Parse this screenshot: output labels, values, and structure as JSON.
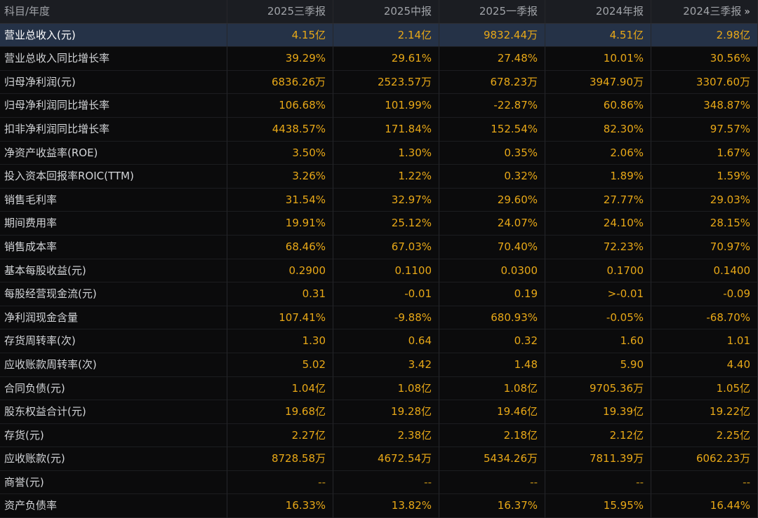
{
  "header": {
    "label": "科目/年度",
    "columns": [
      "2025三季报",
      "2025中报",
      "2025一季报",
      "2024年报",
      "2024三季报"
    ],
    "more_icon": "double-chevron-right-icon",
    "more_glyph": "»"
  },
  "rows": [
    {
      "label": "营业总收入(元)",
      "values": [
        "4.15亿",
        "2.14亿",
        "9832.44万",
        "4.51亿",
        "2.98亿"
      ]
    },
    {
      "label": "营业总收入同比增长率",
      "values": [
        "39.29%",
        "29.61%",
        "27.48%",
        "10.01%",
        "30.56%"
      ]
    },
    {
      "label": "归母净利润(元)",
      "values": [
        "6836.26万",
        "2523.57万",
        "678.23万",
        "3947.90万",
        "3307.60万"
      ]
    },
    {
      "label": "归母净利润同比增长率",
      "values": [
        "106.68%",
        "101.99%",
        "-22.87%",
        "60.86%",
        "348.87%"
      ]
    },
    {
      "label": "扣非净利润同比增长率",
      "values": [
        "4438.57%",
        "171.84%",
        "152.54%",
        "82.30%",
        "97.57%"
      ]
    },
    {
      "label": "净资产收益率(ROE)",
      "values": [
        "3.50%",
        "1.30%",
        "0.35%",
        "2.06%",
        "1.67%"
      ]
    },
    {
      "label": "投入资本回报率ROIC(TTM)",
      "values": [
        "3.26%",
        "1.22%",
        "0.32%",
        "1.89%",
        "1.59%"
      ]
    },
    {
      "label": "销售毛利率",
      "values": [
        "31.54%",
        "32.97%",
        "29.60%",
        "27.77%",
        "29.03%"
      ]
    },
    {
      "label": "期间费用率",
      "values": [
        "19.91%",
        "25.12%",
        "24.07%",
        "24.10%",
        "28.15%"
      ]
    },
    {
      "label": "销售成本率",
      "values": [
        "68.46%",
        "67.03%",
        "70.40%",
        "72.23%",
        "70.97%"
      ]
    },
    {
      "label": "基本每股收益(元)",
      "values": [
        "0.2900",
        "0.1100",
        "0.0300",
        "0.1700",
        "0.1400"
      ]
    },
    {
      "label": "每股经营现金流(元)",
      "values": [
        "0.31",
        "-0.01",
        "0.19",
        ">-0.01",
        "-0.09"
      ]
    },
    {
      "label": "净利润现金含量",
      "values": [
        "107.41%",
        "-9.88%",
        "680.93%",
        "-0.05%",
        "-68.70%"
      ]
    },
    {
      "label": "存货周转率(次)",
      "values": [
        "1.30",
        "0.64",
        "0.32",
        "1.60",
        "1.01"
      ]
    },
    {
      "label": "应收账款周转率(次)",
      "values": [
        "5.02",
        "3.42",
        "1.48",
        "5.90",
        "4.40"
      ]
    },
    {
      "label": "合同负债(元)",
      "values": [
        "1.04亿",
        "1.08亿",
        "1.08亿",
        "9705.36万",
        "1.05亿"
      ]
    },
    {
      "label": "股东权益合计(元)",
      "values": [
        "19.68亿",
        "19.28亿",
        "19.46亿",
        "19.39亿",
        "19.22亿"
      ]
    },
    {
      "label": "存货(元)",
      "values": [
        "2.27亿",
        "2.38亿",
        "2.18亿",
        "2.12亿",
        "2.25亿"
      ]
    },
    {
      "label": "应收账款(元)",
      "values": [
        "8728.58万",
        "4672.54万",
        "5434.26万",
        "7811.39万",
        "6062.23万"
      ]
    },
    {
      "label": "商誉(元)",
      "values": [
        "--",
        "--",
        "--",
        "--",
        "--"
      ]
    },
    {
      "label": "资产负债率",
      "values": [
        "16.33%",
        "13.82%",
        "16.37%",
        "15.95%",
        "16.44%"
      ]
    }
  ],
  "highlight_row": 0,
  "colors": {
    "background": "#0b0b0c",
    "header_bg": "#1b1d22",
    "value_text": "#e8a817",
    "label_text": "#d3d5d8",
    "highlight_bg": "#253247"
  }
}
